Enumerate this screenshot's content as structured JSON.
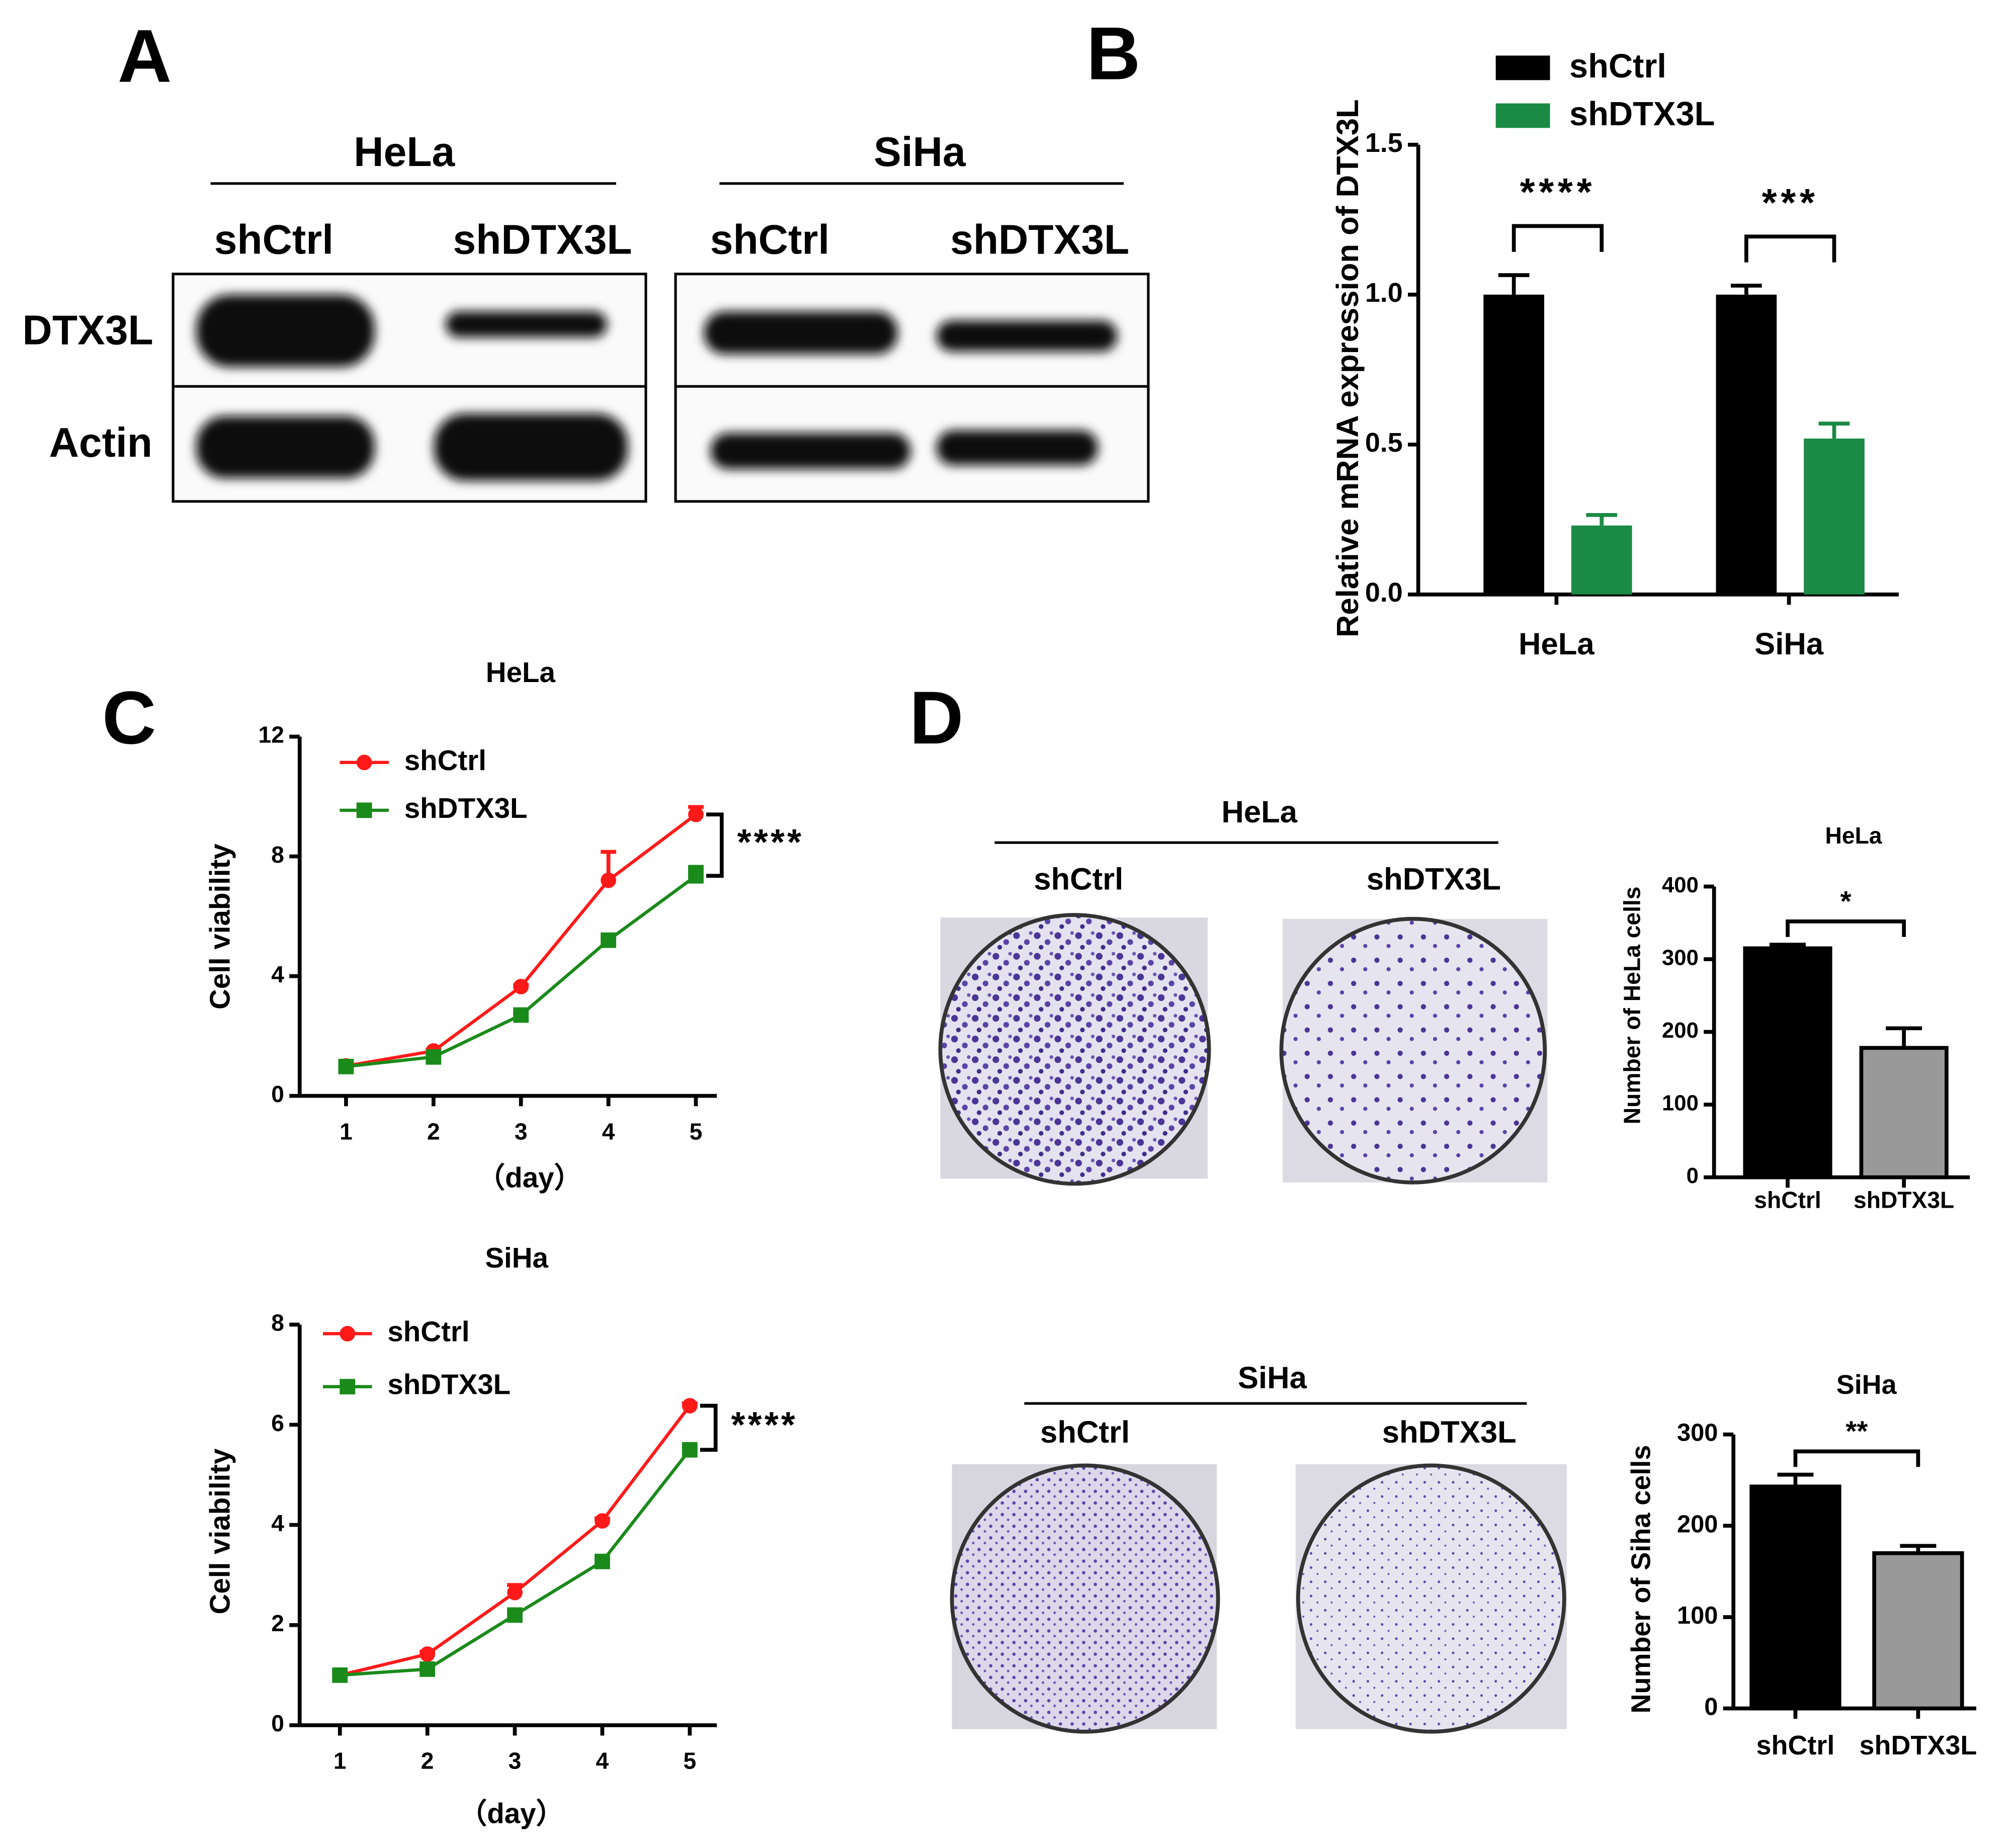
{
  "panels": [
    "A",
    "B",
    "C",
    "D"
  ],
  "western_blot": {
    "groups": [
      {
        "name": "HeLa",
        "lanes": [
          "shCtrl",
          "shDTX3L"
        ]
      },
      {
        "name": "SiHa",
        "lanes": [
          "shCtrl",
          "shDTX3L"
        ]
      }
    ],
    "rows": [
      "DTX3L",
      "Actin"
    ]
  },
  "colony": {
    "groups": [
      {
        "name": "HeLa",
        "lanes": [
          "shCtrl",
          "shDTX3L"
        ]
      },
      {
        "name": "SiHa",
        "lanes": [
          "shCtrl",
          "shDTX3L"
        ]
      }
    ]
  },
  "chart_data": [
    {
      "type": "bar",
      "y_label": "Relative mRNA expression of DTX3L",
      "categories": [
        "HeLa",
        "SiHa"
      ],
      "series": [
        {
          "name": "shCtrl",
          "color": "#000000",
          "values": [
            1.0,
            1.0
          ],
          "errors": [
            0.065,
            0.03
          ]
        },
        {
          "name": "shDTX3L",
          "color": "#1a8a45",
          "values": [
            0.23,
            0.52
          ],
          "errors": [
            0.035,
            0.05
          ]
        }
      ],
      "ylim": [
        0,
        1.5
      ],
      "yticks": [
        {
          "value": 0,
          "label": "0.0"
        },
        {
          "value": 0.5,
          "label": "0.5"
        },
        {
          "value": 1,
          "label": "1.0"
        },
        {
          "value": 1.5,
          "label": "1.5"
        }
      ],
      "significance": [
        "****",
        "***"
      ],
      "legend": "top"
    },
    {
      "type": "line",
      "title": "HeLa",
      "x_label": "（day）",
      "y_label": "Cell viability",
      "x": [
        1,
        2,
        3,
        4,
        5
      ],
      "series": [
        {
          "name": "shCtrl",
          "color": "#ff1a1a",
          "marker": "circle",
          "values": [
            1.0,
            1.5,
            3.65,
            7.2,
            9.4
          ],
          "errors": [
            0.05,
            0.05,
            0.05,
            0.95,
            0.25
          ]
        },
        {
          "name": "shDTX3L",
          "color": "#1a8a1a",
          "marker": "square",
          "values": [
            0.98,
            1.3,
            2.7,
            5.2,
            7.35
          ],
          "errors": [
            0.05,
            0.05,
            0.05,
            0.1,
            0.3
          ]
        }
      ],
      "xlim": [
        0.47,
        5.24
      ],
      "xticks": [
        1,
        2,
        3,
        4,
        5
      ],
      "ylim": [
        0,
        12
      ],
      "yticks": [
        0,
        4,
        8,
        12
      ],
      "significance": "****"
    },
    {
      "type": "line",
      "title": "SiHa",
      "x_label": "（day）",
      "y_label": "Cell viability",
      "x": [
        1,
        2,
        3,
        4,
        5
      ],
      "series": [
        {
          "name": "shCtrl",
          "color": "#ff1a1a",
          "marker": "circle",
          "values": [
            1.0,
            1.42,
            2.65,
            4.08,
            6.38
          ],
          "errors": [
            0.05,
            0.05,
            0.15,
            0.05,
            0.05
          ]
        },
        {
          "name": "shDTX3L",
          "color": "#1a8a1a",
          "marker": "square",
          "values": [
            1.0,
            1.12,
            2.2,
            3.27,
            5.5
          ],
          "errors": [
            0.05,
            0.05,
            0.05,
            0.05,
            0.05
          ]
        }
      ],
      "xlim": [
        0.54,
        5.31
      ],
      "xticks": [
        1,
        2,
        3,
        4,
        5
      ],
      "ylim": [
        0,
        8
      ],
      "yticks": [
        0,
        2,
        4,
        6,
        8
      ],
      "significance": "****"
    },
    {
      "type": "bar",
      "title": "HeLa",
      "y_label": "Number of HeLa cells",
      "categories": [
        "shCtrl",
        "shDTX3L"
      ],
      "values": [
        315,
        178
      ],
      "errors": [
        5,
        27
      ],
      "colors": [
        "#000000",
        "#999999"
      ],
      "ylim": [
        0,
        400
      ],
      "yticks": [
        0,
        100,
        200,
        300,
        400
      ],
      "significance": "*"
    },
    {
      "type": "bar",
      "title": "SiHa",
      "y_label": "Number of Siha cells",
      "categories": [
        "shCtrl",
        "shDTX3L"
      ],
      "values": [
        243,
        170
      ],
      "errors": [
        13,
        8
      ],
      "colors": [
        "#000000",
        "#999999"
      ],
      "ylim": [
        0,
        300
      ],
      "yticks": [
        0,
        100,
        200,
        300
      ],
      "significance": "**"
    }
  ]
}
